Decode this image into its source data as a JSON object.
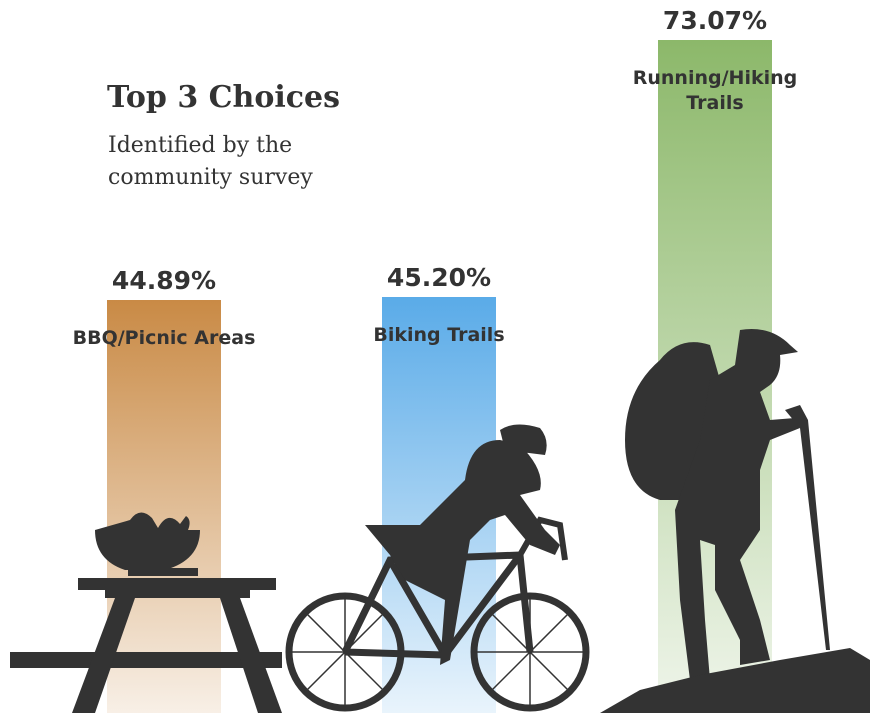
{
  "chart_data": {
    "type": "bar",
    "title": "Top 3 Choices",
    "subtitle": "Identified by the community survey",
    "categories": [
      "BBQ/Picnic Areas",
      "Biking Trails",
      "Running/Hiking Trails"
    ],
    "values": [
      44.89,
      45.2,
      73.07
    ],
    "value_labels": [
      "44.89%",
      "45.20%",
      "73.07%"
    ],
    "colors": [
      "#c98a45",
      "#5aabe8",
      "#8cb86a"
    ]
  }
}
